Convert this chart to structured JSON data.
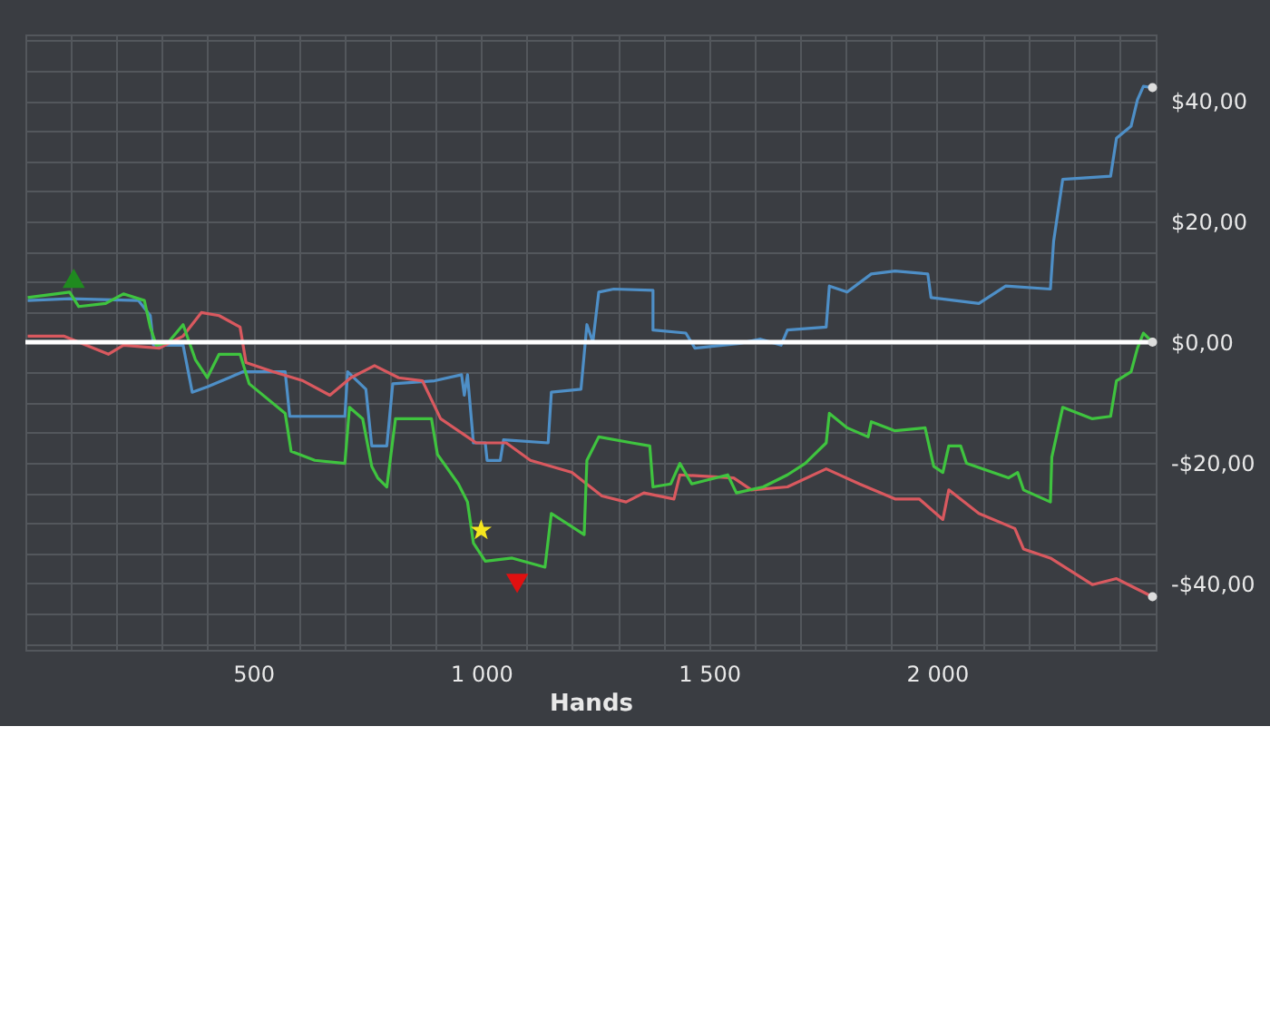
{
  "chart_data": {
    "type": "line",
    "xlabel": "Hands",
    "xlim": [
      0,
      2480
    ],
    "ylim": [
      -51,
      51
    ],
    "xticks": [
      {
        "value": 100,
        "label": null
      },
      {
        "value": 200,
        "label": null
      },
      {
        "value": 300,
        "label": null
      },
      {
        "value": 400,
        "label": null
      },
      {
        "value": 500,
        "label": "500"
      },
      {
        "value": 600,
        "label": null
      },
      {
        "value": 700,
        "label": null
      },
      {
        "value": 800,
        "label": null
      },
      {
        "value": 900,
        "label": null
      },
      {
        "value": 1000,
        "label": "1 000"
      },
      {
        "value": 1100,
        "label": null
      },
      {
        "value": 1200,
        "label": null
      },
      {
        "value": 1300,
        "label": null
      },
      {
        "value": 1400,
        "label": null
      },
      {
        "value": 1500,
        "label": "1 500"
      },
      {
        "value": 1600,
        "label": null
      },
      {
        "value": 1700,
        "label": null
      },
      {
        "value": 1800,
        "label": null
      },
      {
        "value": 1900,
        "label": null
      },
      {
        "value": 2000,
        "label": "2 000"
      },
      {
        "value": 2100,
        "label": null
      },
      {
        "value": 2200,
        "label": null
      },
      {
        "value": 2300,
        "label": null
      },
      {
        "value": 2400,
        "label": null
      }
    ],
    "yticks": [
      {
        "value": -50,
        "label": null
      },
      {
        "value": -45,
        "label": null
      },
      {
        "value": -40,
        "label": "-$40,00"
      },
      {
        "value": -35,
        "label": null
      },
      {
        "value": -30,
        "label": null
      },
      {
        "value": -25,
        "label": null
      },
      {
        "value": -20,
        "label": "-$20,00"
      },
      {
        "value": -15,
        "label": null
      },
      {
        "value": -10,
        "label": null
      },
      {
        "value": -5,
        "label": null
      },
      {
        "value": 0,
        "label": "$0,00"
      },
      {
        "value": 5,
        "label": null
      },
      {
        "value": 10,
        "label": null
      },
      {
        "value": 15,
        "label": null
      },
      {
        "value": 20,
        "label": "$20,00"
      },
      {
        "value": 25,
        "label": null
      },
      {
        "value": 30,
        "label": null
      },
      {
        "value": 35,
        "label": null
      },
      {
        "value": 40,
        "label": "$40,00"
      },
      {
        "value": 45,
        "label": null
      },
      {
        "value": 50,
        "label": null
      }
    ],
    "grid": true,
    "line_style": "solid",
    "ref_lines": [
      {
        "axis": "y",
        "value": 0,
        "color": "#ffffff"
      }
    ],
    "series": [
      {
        "color": "#4e8fc7",
        "x": [
          5,
          97,
          248,
          274,
          281,
          346,
          366,
          399,
          478,
          570,
          580,
          701,
          707,
          747,
          760,
          793,
          806,
          898,
          957,
          963,
          970,
          983,
          1009,
          1013,
          1042,
          1049,
          1147,
          1154,
          1219,
          1232,
          1245,
          1258,
          1291,
          1377,
          1377,
          1449,
          1469,
          1567,
          1613,
          1658,
          1672,
          1757,
          1764,
          1803,
          1856,
          1908,
          1980,
          1987,
          2092,
          2151,
          2249,
          2256,
          2276,
          2381,
          2394,
          2426,
          2440,
          2453,
          2473
        ],
        "values": [
          6.9,
          7.2,
          6.9,
          4.4,
          -0.5,
          -0.5,
          -8.3,
          -7.4,
          -4.9,
          -4.9,
          -12.3,
          -12.3,
          -4.9,
          -7.8,
          -17.2,
          -17.2,
          -6.9,
          -6.4,
          -5.4,
          -8.8,
          -5.4,
          -16.7,
          -16.7,
          -19.6,
          -19.6,
          -16.2,
          -16.7,
          -8.3,
          -7.8,
          2.9,
          0,
          8.3,
          8.8,
          8.6,
          2.0,
          1.5,
          -1.0,
          -0.2,
          0.5,
          -0.5,
          2.0,
          2.5,
          9.3,
          8.3,
          11.3,
          11.8,
          11.3,
          7.4,
          6.4,
          9.3,
          8.8,
          16.7,
          27,
          27.5,
          33.8,
          35.8,
          40.2,
          42.4,
          42.2
        ]
      },
      {
        "color": "#d9595f",
        "x": [
          5,
          84,
          182,
          215,
          294,
          346,
          386,
          425,
          471,
          484,
          543,
          609,
          668,
          714,
          766,
          819,
          871,
          911,
          989,
          1055,
          1108,
          1199,
          1265,
          1318,
          1357,
          1423,
          1436,
          1554,
          1593,
          1672,
          1757,
          1830,
          1908,
          1961,
          2013,
          2026,
          2092,
          2171,
          2190,
          2249,
          2341,
          2394,
          2433,
          2473
        ],
        "values": [
          1.0,
          1.0,
          -2.0,
          -0.5,
          -1.0,
          1.0,
          4.9,
          4.4,
          2.5,
          -3.4,
          -4.9,
          -6.4,
          -8.8,
          -5.9,
          -3.9,
          -5.9,
          -6.4,
          -12.7,
          -16.7,
          -16.7,
          -19.6,
          -21.6,
          -25.5,
          -26.5,
          -25,
          -26,
          -22,
          -22.5,
          -24.5,
          -24,
          -21,
          -23.5,
          -26,
          -26,
          -29.4,
          -24.5,
          -28.4,
          -30.9,
          -34.3,
          -35.8,
          -40.2,
          -39.2,
          -40.7,
          -42.2
        ]
      },
      {
        "color": "#3fc43f",
        "x": [
          5,
          97,
          117,
          176,
          215,
          261,
          274,
          287,
          314,
          346,
          373,
          399,
          425,
          471,
          491,
          570,
          583,
          635,
          701,
          711,
          740,
          760,
          773,
          793,
          812,
          891,
          904,
          950,
          970,
          983,
          1009,
          1068,
          1140,
          1154,
          1226,
          1232,
          1258,
          1331,
          1370,
          1377,
          1416,
          1436,
          1462,
          1541,
          1560,
          1619,
          1672,
          1711,
          1757,
          1764,
          1803,
          1849,
          1856,
          1908,
          1974,
          1993,
          2013,
          2026,
          2052,
          2065,
          2157,
          2177,
          2190,
          2249,
          2252,
          2276,
          2341,
          2381,
          2394,
          2426,
          2440,
          2453,
          2473
        ],
        "values": [
          7.4,
          8.3,
          5.9,
          6.4,
          8.0,
          6.9,
          2.5,
          -0.5,
          0,
          2.9,
          -2.9,
          -5.9,
          -2.0,
          -2.0,
          -6.9,
          -11.8,
          -18.1,
          -19.6,
          -20.1,
          -10.8,
          -12.7,
          -20.6,
          -22.5,
          -24,
          -12.7,
          -12.7,
          -18.6,
          -23.5,
          -26.5,
          -33.3,
          -36.3,
          -35.8,
          -37.3,
          -28.4,
          -31.9,
          -19.6,
          -15.7,
          -16.7,
          -17.2,
          -24,
          -23.5,
          -20.1,
          -23.5,
          -22,
          -25,
          -24,
          -22,
          -20.1,
          -16.7,
          -11.8,
          -14.2,
          -15.7,
          -13.2,
          -14.7,
          -14.2,
          -20.6,
          -21.6,
          -17.2,
          -17.2,
          -20.1,
          -22.5,
          -21.6,
          -24.5,
          -26.5,
          -19.1,
          -10.8,
          -12.7,
          -12.3,
          -6.4,
          -4.9,
          -1.0,
          1.5,
          0
        ]
      },
      {
        "type": "scatter",
        "marker": "triangle",
        "color": "#1f8a1f",
        "x": [
          106
        ],
        "values": [
          10.6
        ]
      },
      {
        "type": "scatter",
        "marker": "star",
        "color": "#f5e61e",
        "x": [
          1000
        ],
        "values": [
          -31.2
        ]
      },
      {
        "type": "scatter",
        "marker": "triangle-down",
        "color": "#e01010",
        "x": [
          1079
        ],
        "values": [
          -40
        ]
      },
      {
        "type": "scatter",
        "marker": "circle",
        "color": "#dddddd",
        "x": [
          2473,
          2473,
          2473
        ],
        "values": [
          42.2,
          0,
          -42.2
        ]
      }
    ]
  }
}
